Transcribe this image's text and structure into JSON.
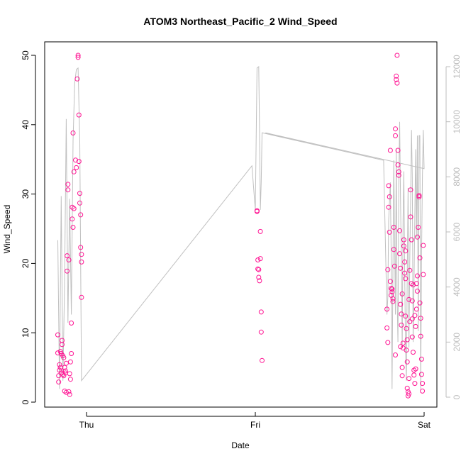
{
  "chart_data": {
    "type": "scatter",
    "title": "ATOM3 Northeast_Pacific_2 Wind_Speed",
    "xlabel": "Date",
    "ylabel": "Wind_Speed",
    "x_ticks": [
      "Thu",
      "Fri",
      "Sat"
    ],
    "y_ticks": [
      "0",
      "10",
      "20",
      "30",
      "40",
      "50"
    ],
    "y2_ticks": [
      "0",
      "2000",
      "4000",
      "6000",
      "8000",
      "10000",
      "12000"
    ],
    "ylim": [
      0,
      50
    ],
    "y2lim": [
      0,
      12000
    ],
    "x_range_days": [
      -0.2,
      2.0
    ],
    "grid": false,
    "colors": {
      "points": "#ff1493",
      "line": "#c0c0c0",
      "right_axis": "#bdbdbd",
      "axes": "#000000"
    },
    "series": [
      {
        "marker": "circle-open",
        "points": [
          [
            -0.17,
            9.7
          ],
          [
            -0.17,
            7.1
          ],
          [
            -0.165,
            2.9
          ],
          [
            -0.165,
            3.8
          ],
          [
            -0.16,
            4.6
          ],
          [
            -0.16,
            5.4
          ],
          [
            -0.155,
            7.3
          ],
          [
            -0.155,
            5.0
          ],
          [
            -0.15,
            4.2
          ],
          [
            -0.15,
            7.0
          ],
          [
            -0.145,
            8.9
          ],
          [
            -0.145,
            8.3
          ],
          [
            -0.14,
            6.7
          ],
          [
            -0.14,
            4.0
          ],
          [
            -0.135,
            3.8
          ],
          [
            -0.135,
            6.4
          ],
          [
            -0.13,
            5.0
          ],
          [
            -0.13,
            1.6
          ],
          [
            -0.125,
            4.2
          ],
          [
            -0.125,
            4.5
          ],
          [
            -0.12,
            5.6
          ],
          [
            -0.12,
            1.4
          ],
          [
            -0.115,
            18.9
          ],
          [
            -0.115,
            21.1
          ],
          [
            -0.11,
            31.4
          ],
          [
            -0.11,
            30.6
          ],
          [
            -0.105,
            20.5
          ],
          [
            -0.105,
            1.5
          ],
          [
            -0.1,
            1.1
          ],
          [
            -0.1,
            4.1
          ],
          [
            -0.095,
            5.8
          ],
          [
            -0.095,
            3.3
          ],
          [
            -0.09,
            7.0
          ],
          [
            -0.09,
            11.4
          ],
          [
            -0.085,
            28.1
          ],
          [
            -0.085,
            26.4
          ],
          [
            -0.08,
            38.8
          ],
          [
            -0.08,
            25.2
          ],
          [
            -0.075,
            27.9
          ],
          [
            -0.075,
            33.2
          ],
          [
            -0.065,
            34.9
          ],
          [
            -0.06,
            33.8
          ],
          [
            -0.055,
            46.6
          ],
          [
            -0.05,
            50.0
          ],
          [
            -0.05,
            49.7
          ],
          [
            -0.045,
            41.4
          ],
          [
            -0.045,
            34.7
          ],
          [
            -0.04,
            30.1
          ],
          [
            -0.04,
            28.7
          ],
          [
            -0.035,
            27.0
          ],
          [
            -0.035,
            22.3
          ],
          [
            -0.03,
            21.3
          ],
          [
            -0.03,
            20.2
          ],
          [
            -0.03,
            15.1
          ],
          [
            1.01,
            27.6
          ],
          [
            1.01,
            27.5
          ],
          [
            1.015,
            20.5
          ],
          [
            1.015,
            19.2
          ],
          [
            1.02,
            19.1
          ],
          [
            1.02,
            18.0
          ],
          [
            1.025,
            17.5
          ],
          [
            1.03,
            24.6
          ],
          [
            1.03,
            20.7
          ],
          [
            1.035,
            13.0
          ],
          [
            1.035,
            10.1
          ],
          [
            1.04,
            6.0
          ],
          [
            1.78,
            13.4
          ],
          [
            1.78,
            10.7
          ],
          [
            1.785,
            8.6
          ],
          [
            1.785,
            19.1
          ],
          [
            1.79,
            31.2
          ],
          [
            1.79,
            28.1
          ],
          [
            1.795,
            29.6
          ],
          [
            1.795,
            24.5
          ],
          [
            1.8,
            36.3
          ],
          [
            1.8,
            17.4
          ],
          [
            1.805,
            16.4
          ],
          [
            1.805,
            15.4
          ],
          [
            1.81,
            16.3
          ],
          [
            1.81,
            15.9
          ],
          [
            1.815,
            14.9
          ],
          [
            1.815,
            14.5
          ],
          [
            1.82,
            22.0
          ],
          [
            1.82,
            25.2
          ],
          [
            1.825,
            19.6
          ],
          [
            1.83,
            38.4
          ],
          [
            1.83,
            39.4
          ],
          [
            1.835,
            47.0
          ],
          [
            1.835,
            46.5
          ],
          [
            1.84,
            50.0
          ],
          [
            1.84,
            46.0
          ],
          [
            1.845,
            36.3
          ],
          [
            1.845,
            34.2
          ],
          [
            1.85,
            33.2
          ],
          [
            1.85,
            32.7
          ],
          [
            1.855,
            24.7
          ],
          [
            1.855,
            21.4
          ],
          [
            1.86,
            19.3
          ],
          [
            1.86,
            14.1
          ],
          [
            1.865,
            12.7
          ],
          [
            1.865,
            11.1
          ],
          [
            1.87,
            5.0
          ],
          [
            1.87,
            3.8
          ],
          [
            1.875,
            8.5
          ],
          [
            1.875,
            7.8
          ],
          [
            1.88,
            23.4
          ],
          [
            1.88,
            22.5
          ],
          [
            1.885,
            20.2
          ],
          [
            1.885,
            18.6
          ],
          [
            1.89,
            17.8
          ],
          [
            1.89,
            12.4
          ],
          [
            1.895,
            10.6
          ],
          [
            1.895,
            7.5
          ],
          [
            1.9,
            5.8
          ],
          [
            1.9,
            2.0
          ],
          [
            1.905,
            1.5
          ],
          [
            1.905,
            0.9
          ],
          [
            1.91,
            1.2
          ],
          [
            1.91,
            3.4
          ],
          [
            1.915,
            11.6
          ],
          [
            1.915,
            19.0
          ],
          [
            1.92,
            26.7
          ],
          [
            1.92,
            30.6
          ],
          [
            1.925,
            23.4
          ],
          [
            1.925,
            17.1
          ],
          [
            1.93,
            14.6
          ],
          [
            1.93,
            9.4
          ],
          [
            1.935,
            7.2
          ],
          [
            1.94,
            4.6
          ],
          [
            1.94,
            3.9
          ],
          [
            1.945,
            2.7
          ],
          [
            1.95,
            4.8
          ],
          [
            1.95,
            10.9
          ],
          [
            1.955,
            13.4
          ],
          [
            1.955,
            17.1
          ],
          [
            1.96,
            18.2
          ],
          [
            1.96,
            23.8
          ],
          [
            1.965,
            25.2
          ],
          [
            1.97,
            29.6
          ],
          [
            1.97,
            29.8
          ],
          [
            1.975,
            20.8
          ],
          [
            1.975,
            14.3
          ],
          [
            1.98,
            12.1
          ],
          [
            1.98,
            9.5
          ],
          [
            1.985,
            6.2
          ],
          [
            1.985,
            4.0
          ],
          [
            1.99,
            2.7
          ],
          [
            1.99,
            1.6
          ],
          [
            1.995,
            18.4
          ],
          [
            1.995,
            22.6
          ],
          [
            1.96,
            16.0
          ],
          [
            1.93,
            12.0
          ],
          [
            1.9,
            9.0
          ],
          [
            1.86,
            8.0
          ],
          [
            1.83,
            6.8
          ],
          [
            1.87,
            15.6
          ],
          [
            1.89,
            21.8
          ],
          [
            1.91,
            14.8
          ],
          [
            1.935,
            16.9
          ],
          [
            1.945,
            12.5
          ]
        ]
      },
      {
        "axis": "right",
        "line_points": [
          [
            -0.17,
            5700
          ],
          [
            -0.16,
            300
          ],
          [
            -0.15,
            7300
          ],
          [
            -0.14,
            600
          ],
          [
            -0.13,
            4200
          ],
          [
            -0.12,
            10100
          ],
          [
            -0.11,
            2700
          ],
          [
            -0.1,
            7200
          ],
          [
            -0.09,
            3000
          ],
          [
            -0.08,
            9300
          ],
          [
            -0.07,
            11400
          ],
          [
            -0.06,
            11900
          ],
          [
            -0.05,
            11950
          ],
          [
            -0.04,
            9300
          ],
          [
            -0.03,
            600
          ],
          [
            0.98,
            8400
          ],
          [
            1.0,
            6800
          ],
          [
            1.01,
            11950
          ],
          [
            1.02,
            12000
          ],
          [
            1.025,
            9800
          ],
          [
            1.03,
            6800
          ],
          [
            1.035,
            7800
          ],
          [
            1.04,
            9600
          ],
          [
            1.76,
            8600
          ],
          [
            1.78,
            3000
          ],
          [
            1.785,
            3600
          ],
          [
            1.79,
            6400
          ],
          [
            1.8,
            7800
          ],
          [
            1.805,
            5000
          ],
          [
            1.81,
            300
          ],
          [
            1.815,
            4500
          ],
          [
            1.82,
            8600
          ],
          [
            1.825,
            6000
          ],
          [
            1.83,
            3000
          ],
          [
            1.835,
            9000
          ],
          [
            1.84,
            3600
          ],
          [
            1.845,
            2000
          ],
          [
            1.85,
            7700
          ],
          [
            1.855,
            10000
          ],
          [
            1.86,
            7200
          ],
          [
            1.865,
            5000
          ],
          [
            1.87,
            1800
          ],
          [
            1.875,
            6400
          ],
          [
            1.88,
            8200
          ],
          [
            1.885,
            4500
          ],
          [
            1.89,
            1800
          ],
          [
            1.895,
            600
          ],
          [
            1.9,
            4500
          ],
          [
            1.905,
            7600
          ],
          [
            1.91,
            1800
          ],
          [
            1.915,
            5000
          ],
          [
            1.92,
            7200
          ],
          [
            1.925,
            9700
          ],
          [
            1.93,
            8000
          ],
          [
            1.935,
            2000
          ],
          [
            1.94,
            4000
          ],
          [
            1.945,
            6600
          ],
          [
            1.95,
            9000
          ],
          [
            1.955,
            5800
          ],
          [
            1.96,
            9500
          ],
          [
            1.965,
            2400
          ],
          [
            1.97,
            9500
          ],
          [
            1.975,
            9500
          ],
          [
            1.98,
            300
          ],
          [
            1.985,
            5200
          ],
          [
            1.99,
            8000
          ],
          [
            1.995,
            9700
          ],
          [
            2.0,
            8300
          ],
          [
            1.06,
            9600
          ],
          [
            2.0,
            8300
          ]
        ]
      }
    ]
  }
}
